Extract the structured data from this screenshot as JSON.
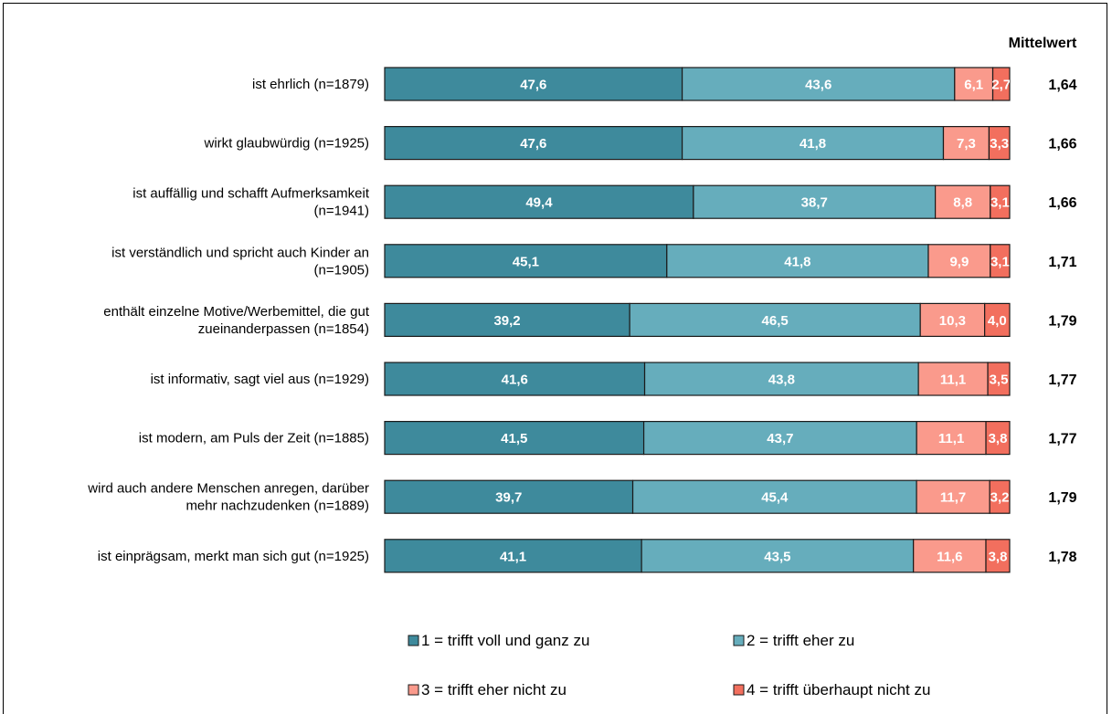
{
  "chart_data": {
    "type": "bar",
    "orientation": "horizontal",
    "stacked": true,
    "categories": [
      "ist ehrlich (n=1879)",
      "wirkt glaubwürdig (n=1925)",
      "ist auffällig und schafft Aufmerksamkeit (n=1941)",
      "ist verständlich und spricht auch Kinder an (n=1905)",
      "enthält einzelne Motive/Werbemittel, die gut zueinanderpassen (n=1854)",
      "ist informativ, sagt viel aus (n=1929)",
      "ist modern, am Puls der Zeit (n=1885)",
      "wird auch andere Menschen anregen, darüber mehr nachzudenken (n=1889)",
      "ist einprägsam, merkt man sich gut (n=1925)"
    ],
    "category_lines": [
      [
        "ist ehrlich (n=1879)"
      ],
      [
        "wirkt glaubwürdig (n=1925)"
      ],
      [
        "ist auffällig und schafft Aufmerksamkeit",
        "(n=1941)"
      ],
      [
        "ist verständlich und spricht auch Kinder an",
        "(n=1905)"
      ],
      [
        "enthält einzelne Motive/Werbemittel, die gut",
        "zueinanderpassen (n=1854)"
      ],
      [
        "ist informativ, sagt viel aus (n=1929)"
      ],
      [
        "ist modern, am Puls der Zeit (n=1885)"
      ],
      [
        "wird auch andere Menschen anregen, darüber",
        "mehr nachzudenken (n=1889)"
      ],
      [
        "ist einprägsam, merkt man sich gut (n=1925)"
      ]
    ],
    "series": [
      {
        "name": "1 = trifft voll und ganz zu",
        "color": "#3E8A9C",
        "values": [
          47.6,
          47.6,
          49.4,
          45.1,
          39.2,
          41.6,
          41.5,
          39.7,
          41.1
        ],
        "labels": [
          "47,6",
          "47,6",
          "49,4",
          "45,1",
          "39,2",
          "41,6",
          "41,5",
          "39,7",
          "41,1"
        ]
      },
      {
        "name": "2 = trifft eher zu",
        "color": "#66ADBC",
        "values": [
          43.6,
          41.8,
          38.7,
          41.8,
          46.5,
          43.8,
          43.7,
          45.4,
          43.5
        ],
        "labels": [
          "43,6",
          "41,8",
          "38,7",
          "41,8",
          "46,5",
          "43,8",
          "43,7",
          "45,4",
          "43,5"
        ]
      },
      {
        "name": "3 = trifft eher nicht zu",
        "color": "#FA9A8C",
        "values": [
          6.1,
          7.3,
          8.8,
          9.9,
          10.3,
          11.1,
          11.1,
          11.7,
          11.6
        ],
        "labels": [
          "6,1",
          "7,3",
          "8,8",
          "9,9",
          "10,3",
          "11,1",
          "11,1",
          "11,7",
          "11,6"
        ]
      },
      {
        "name": "4 = trifft überhaupt nicht zu",
        "color": "#F26F5E",
        "values": [
          2.7,
          3.3,
          3.1,
          3.1,
          4.0,
          3.5,
          3.8,
          3.2,
          3.8
        ],
        "labels": [
          "2,7",
          "3,3",
          "3,1",
          "3,1",
          "4,0",
          "3,5",
          "3,8",
          "3,2",
          "3,8"
        ]
      }
    ],
    "mean_header": "Mittelwert",
    "means": [
      "1,64",
      "1,66",
      "1,66",
      "1,71",
      "1,79",
      "1,77",
      "1,77",
      "1,79",
      "1,78"
    ],
    "xlim": [
      0,
      100
    ],
    "grid": false,
    "legend_position": "bottom"
  }
}
